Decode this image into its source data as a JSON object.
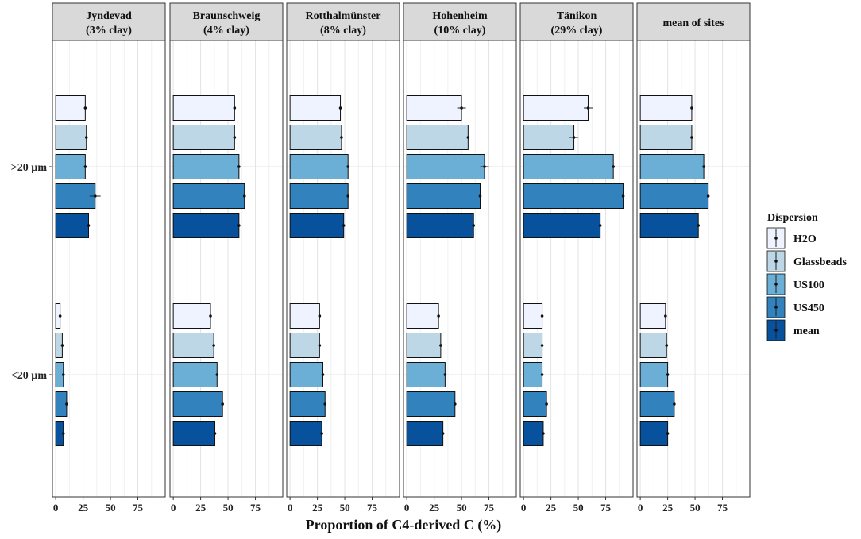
{
  "chart_data": {
    "type": "bar",
    "orientation": "horizontal",
    "xlabel": "Proportion of C4-derived C (%)",
    "ylabel": "",
    "xlim": [
      -3,
      100
    ],
    "x_ticks": [
      0,
      25,
      50,
      75
    ],
    "x_tick_labels": [
      "0",
      "25",
      "50",
      "75"
    ],
    "grid": true,
    "legend": {
      "title": "Dispersion",
      "position": "right",
      "entries": [
        "H2O",
        "Glassbeads",
        "US100",
        "US450",
        "mean"
      ]
    },
    "colors": {
      "H2O": "#eff3ff",
      "Glassbeads": "#bdd7e7",
      "US100": "#6baed6",
      "US450": "#3182bd",
      "mean": "#08519c"
    },
    "groups": [
      "<20 µm",
      ">20 µm"
    ],
    "series": [
      "H2O",
      "Glassbeads",
      "US100",
      "US450",
      "mean"
    ],
    "panels": [
      {
        "title_line1": "Jyndevad",
        "title_line2": "(3% clay)",
        "values": {
          ">20 µm": [
            27,
            28,
            27,
            36,
            30
          ],
          "<20 µm": [
            4,
            6,
            7,
            10,
            7
          ]
        },
        "errors": {
          ">20 µm": [
            1,
            1,
            1,
            5,
            1
          ],
          "<20 µm": [
            1,
            1,
            1,
            1,
            1
          ]
        }
      },
      {
        "title_line1": "Braunschweig",
        "title_line2": "(4% clay)",
        "values": {
          ">20 µm": [
            56,
            56,
            60,
            65,
            60
          ],
          "<20 µm": [
            34,
            37,
            40,
            45,
            38
          ]
        },
        "errors": {
          ">20 µm": [
            1,
            1,
            1,
            1,
            1
          ],
          "<20 µm": [
            1,
            1,
            1,
            1,
            1
          ]
        }
      },
      {
        "title_line1": "Rotthalmünster",
        "title_line2": "(8% clay)",
        "values": {
          ">20 µm": [
            46,
            47,
            53,
            53,
            49
          ],
          "<20 µm": [
            27,
            27,
            30,
            32,
            29
          ]
        },
        "errors": {
          ">20 µm": [
            1,
            1,
            1,
            1,
            1
          ],
          "<20 µm": [
            1,
            1,
            1,
            1,
            1
          ]
        }
      },
      {
        "title_line1": "Hohenheim",
        "title_line2": "(10% clay)",
        "values": {
          ">20 µm": [
            50,
            56,
            71,
            67,
            61
          ],
          "<20 µm": [
            29,
            31,
            35,
            44,
            33
          ]
        },
        "errors": {
          ">20 µm": [
            4,
            1,
            4,
            1,
            1
          ],
          "<20 µm": [
            1,
            1,
            1,
            1,
            1
          ]
        }
      },
      {
        "title_line1": "Tänikon",
        "title_line2": "(29% clay)",
        "values": {
          ">20 µm": [
            59,
            46,
            82,
            91,
            70
          ],
          "<20 µm": [
            17,
            17,
            17,
            21,
            18
          ]
        },
        "errors": {
          ">20 µm": [
            4,
            4,
            1,
            1,
            1
          ],
          "<20 µm": [
            1,
            1,
            1,
            1,
            1
          ]
        }
      },
      {
        "title_line1": "mean of sites",
        "title_line2": "",
        "values": {
          ">20 µm": [
            47,
            47,
            58,
            62,
            53
          ],
          "<20 µm": [
            23,
            24,
            25,
            31,
            25
          ]
        },
        "errors": {
          ">20 µm": [
            1,
            1,
            1,
            1,
            1
          ],
          "<20 µm": [
            1,
            1,
            1,
            1,
            1
          ]
        }
      }
    ]
  }
}
